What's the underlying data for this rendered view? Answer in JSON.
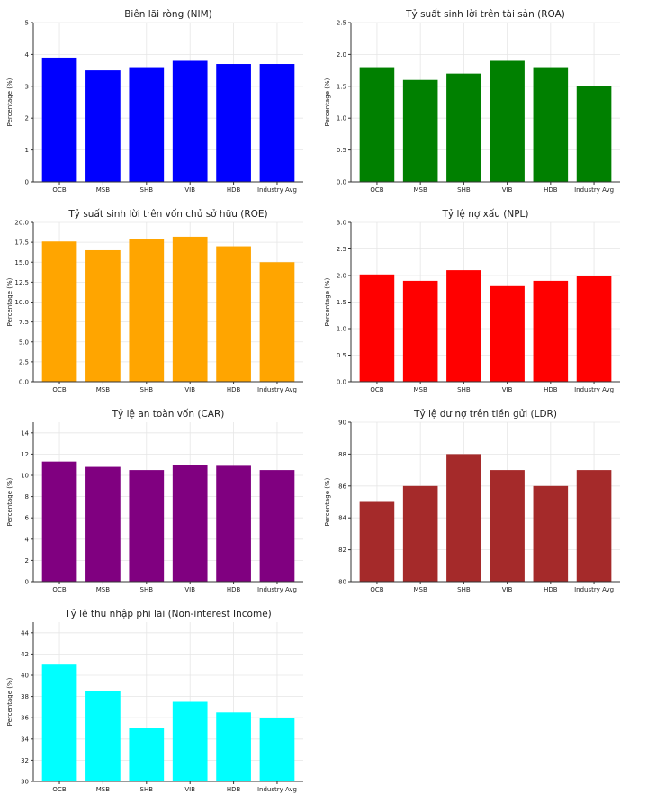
{
  "chart_data": [
    {
      "type": "bar",
      "title": "Biên lãi ròng (NIM)",
      "ylabel": "Percentage (%)",
      "categories": [
        "OCB",
        "MSB",
        "SHB",
        "VIB",
        "HDB",
        "Industry Avg"
      ],
      "values": [
        3.9,
        3.5,
        3.6,
        3.8,
        3.7,
        3.7
      ],
      "ylim": [
        0,
        5
      ],
      "yticks": [
        0,
        1,
        2,
        3,
        4,
        5
      ],
      "ytick_labels": [
        "0",
        "1",
        "2",
        "3",
        "4",
        "5"
      ],
      "color": "#0000ff",
      "grid": true
    },
    {
      "type": "bar",
      "title": "Tỷ suất sinh lời trên tài sản (ROA)",
      "ylabel": "Percentage (%)",
      "categories": [
        "OCB",
        "MSB",
        "SHB",
        "VIB",
        "HDB",
        "Industry Avg"
      ],
      "values": [
        1.8,
        1.6,
        1.7,
        1.9,
        1.8,
        1.5
      ],
      "ylim": [
        0,
        2.5
      ],
      "yticks": [
        0,
        0.5,
        1,
        1.5,
        2,
        2.5
      ],
      "ytick_labels": [
        "0.0",
        "0.5",
        "1.0",
        "1.5",
        "2.0",
        "2.5"
      ],
      "color": "#008000",
      "grid": true
    },
    {
      "type": "bar",
      "title": "Tỷ suất sinh lời trên vốn chủ sở hữu (ROE)",
      "ylabel": "Percentage (%)",
      "categories": [
        "OCB",
        "MSB",
        "SHB",
        "VIB",
        "HDB",
        "Industry Avg"
      ],
      "values": [
        17.6,
        16.5,
        17.9,
        18.2,
        17.0,
        15.0
      ],
      "ylim": [
        0,
        20
      ],
      "yticks": [
        0,
        2.5,
        5,
        7.5,
        10,
        12.5,
        15,
        17.5,
        20
      ],
      "ytick_labels": [
        "0.0",
        "2.5",
        "5.0",
        "7.5",
        "10.0",
        "12.5",
        "15.0",
        "17.5",
        "20.0"
      ],
      "color": "#ffa500",
      "grid": true
    },
    {
      "type": "bar",
      "title": "Tỷ lệ nợ xấu (NPL)",
      "ylabel": "Percentage (%)",
      "categories": [
        "OCB",
        "MSB",
        "SHB",
        "VIB",
        "HDB",
        "Industry Avg"
      ],
      "values": [
        2.02,
        1.9,
        2.1,
        1.8,
        1.9,
        2.0
      ],
      "ylim": [
        0,
        3
      ],
      "yticks": [
        0,
        0.5,
        1,
        1.5,
        2,
        2.5,
        3
      ],
      "ytick_labels": [
        "0.0",
        "0.5",
        "1.0",
        "1.5",
        "2.0",
        "2.5",
        "3.0"
      ],
      "color": "#ff0000",
      "grid": true
    },
    {
      "type": "bar",
      "title": "Tỷ lệ an toàn vốn (CAR)",
      "ylabel": "Percentage (%)",
      "categories": [
        "OCB",
        "MSB",
        "SHB",
        "VIB",
        "HDB",
        "Industry Avg"
      ],
      "values": [
        11.3,
        10.8,
        10.5,
        11.0,
        10.9,
        10.5
      ],
      "ylim": [
        0,
        15
      ],
      "yticks": [
        0,
        2,
        4,
        6,
        8,
        10,
        12,
        14
      ],
      "ytick_labels": [
        "0",
        "2",
        "4",
        "6",
        "8",
        "10",
        "12",
        "14"
      ],
      "color": "#800080",
      "grid": true
    },
    {
      "type": "bar",
      "title": "Tỷ lệ dư nợ trên tiền gửi (LDR)",
      "ylabel": "Percentage (%)",
      "categories": [
        "OCB",
        "MSB",
        "SHB",
        "VIB",
        "HDB",
        "Industry Avg"
      ],
      "values": [
        85,
        86,
        88,
        87,
        86,
        87
      ],
      "ylim": [
        80,
        90
      ],
      "yticks": [
        80,
        82,
        84,
        86,
        88,
        90
      ],
      "ytick_labels": [
        "80",
        "82",
        "84",
        "86",
        "88",
        "90"
      ],
      "color": "#a52a2a",
      "grid": true
    },
    {
      "type": "bar",
      "title": "Tỷ lệ thu nhập phi lãi (Non-interest Income)",
      "ylabel": "Percentage (%)",
      "categories": [
        "OCB",
        "MSB",
        "SHB",
        "VIB",
        "HDB",
        "Industry Avg"
      ],
      "values": [
        41.0,
        38.5,
        35.0,
        37.5,
        36.5,
        36.0
      ],
      "ylim": [
        30,
        45
      ],
      "yticks": [
        30,
        32,
        34,
        36,
        38,
        40,
        42,
        44
      ],
      "ytick_labels": [
        "30",
        "32",
        "34",
        "36",
        "38",
        "40",
        "42",
        "44"
      ],
      "color": "#00ffff",
      "grid": true
    }
  ]
}
